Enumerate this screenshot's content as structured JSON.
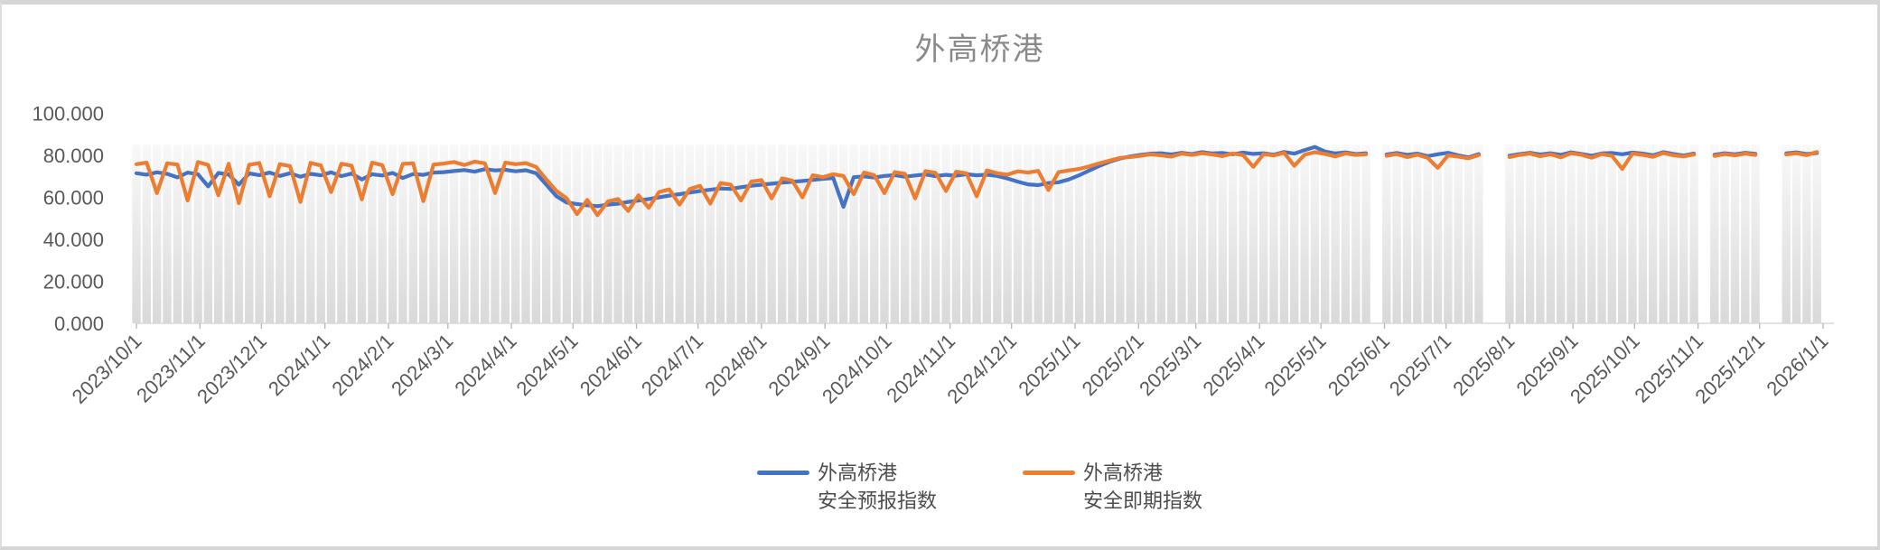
{
  "chart": {
    "title": "外高桥港"
  },
  "legend": {
    "items": [
      {
        "line1": "外高桥港",
        "line2": "安全预报指数",
        "color": "#4472C4"
      },
      {
        "line1": "外高桥港",
        "line2": "安全即期指数",
        "color": "#ED7D31"
      }
    ]
  },
  "colors": {
    "title_text": "#8a8a8a",
    "axis_line": "#d9d9d9",
    "tick_mark": "#b5b5b5",
    "axis_label_text": "#595959",
    "legend_text": "#4d4d4d",
    "series_forecast": "#4472C4",
    "series_spot": "#ED7D31",
    "bar_gradient_top": "#f8f8f8",
    "bar_gradient_bottom": "#d9d9d9"
  },
  "chart_data": {
    "type": "line",
    "title": "外高桥港",
    "xlabel": "",
    "ylabel": "",
    "ylim": [
      0,
      100
    ],
    "grid": false,
    "legend_position": "bottom",
    "x_start_date": "2023/10/1",
    "x_step_days": 5,
    "x_tick_labels": [
      "2023/10/1",
      "2023/11/1",
      "2023/12/1",
      "2024/1/1",
      "2024/2/1",
      "2024/3/1",
      "2024/4/1",
      "2024/5/1",
      "2024/6/1",
      "2024/7/1",
      "2024/8/1",
      "2024/9/1",
      "2024/10/1",
      "2024/11/1",
      "2024/12/1",
      "2025/1/1",
      "2025/2/1",
      "2025/3/1",
      "2025/4/1",
      "2025/5/1",
      "2025/6/1",
      "2025/7/1",
      "2025/8/1",
      "2025/9/1",
      "2025/10/1",
      "2025/11/1",
      "2025/12/1",
      "2026/1/1"
    ],
    "x_tick_day_offsets": [
      0,
      31,
      61,
      92,
      123,
      152,
      183,
      213,
      244,
      274,
      305,
      336,
      366,
      397,
      427,
      458,
      489,
      517,
      548,
      578,
      609,
      639,
      670,
      701,
      731,
      762,
      792,
      823
    ],
    "y_tick_labels": [
      "0.000",
      "20.000",
      "40.000",
      "60.000",
      "80.000",
      "100.000"
    ],
    "y_tick_values": [
      0,
      20,
      40,
      60,
      80,
      100
    ],
    "background_bars": {
      "top_value": 85,
      "color_top": "#f8f8f8",
      "color_bottom": "#d9d9d9"
    },
    "series": [
      {
        "name": "外高桥港安全预报指数",
        "color": "#4472C4",
        "values": [
          71.5,
          70.8,
          71.9,
          71.2,
          69.5,
          71.8,
          71.0,
          65.2,
          71.6,
          70.9,
          66.0,
          71.4,
          70.6,
          71.8,
          70.2,
          71.5,
          69.8,
          71.2,
          70.5,
          71.9,
          70.1,
          71.3,
          68.5,
          71.0,
          70.4,
          71.6,
          69.2,
          71.1,
          70.7,
          71.8,
          72.0,
          72.5,
          73.0,
          72.2,
          73.4,
          72.8,
          73.1,
          72.4,
          72.9,
          71.5,
          66.0,
          60.5,
          57.5,
          56.8,
          56.2,
          55.8,
          56.5,
          57.0,
          57.8,
          58.5,
          59.2,
          60.0,
          60.8,
          61.5,
          62.3,
          63.0,
          63.6,
          64.2,
          64.0,
          64.8,
          65.5,
          66.0,
          66.5,
          67.0,
          67.4,
          67.8,
          68.3,
          68.8,
          69.2,
          55.5,
          69.6,
          70.0,
          69.4,
          70.2,
          70.6,
          69.8,
          70.4,
          70.9,
          70.1,
          70.7,
          70.3,
          71.0,
          70.5,
          70.8,
          70.2,
          69.0,
          67.5,
          66.2,
          65.8,
          66.8,
          67.2,
          68.5,
          70.5,
          72.8,
          75.0,
          77.0,
          78.5,
          79.5,
          80.2,
          80.8,
          81.0,
          80.4,
          81.2,
          80.6,
          81.5,
          80.9,
          81.1,
          80.5,
          81.3,
          80.7,
          81.0,
          80.3,
          81.6,
          80.8,
          82.5,
          84.0,
          81.8,
          80.9,
          81.4,
          80.6,
          81.0,
          null,
          80.4,
          81.1,
          80.2,
          80.8,
          79.6,
          80.5,
          81.2,
          80.0,
          79.0,
          80.6,
          null,
          null,
          79.8,
          80.6,
          81.2,
          80.4,
          81.0,
          80.2,
          81.4,
          80.7,
          79.8,
          80.9,
          81.1,
          80.5,
          81.3,
          80.8,
          80.0,
          81.5,
          80.6,
          79.9,
          80.8,
          null,
          80.3,
          81.0,
          80.5,
          81.2,
          80.7,
          null,
          null,
          80.9,
          81.4,
          80.6,
          81.1
        ]
      },
      {
        "name": "外高桥港安全即期指数",
        "color": "#ED7D31",
        "values": [
          75.8,
          76.5,
          62.0,
          76.2,
          75.6,
          58.5,
          76.8,
          75.4,
          61.0,
          76.0,
          57.2,
          75.5,
          76.3,
          60.5,
          75.8,
          74.9,
          57.8,
          76.4,
          75.2,
          62.5,
          76.0,
          75.1,
          59.0,
          76.5,
          75.3,
          61.5,
          75.9,
          76.2,
          58.2,
          75.6,
          76.1,
          76.8,
          75.4,
          77.0,
          76.2,
          62.0,
          76.5,
          75.8,
          76.3,
          74.5,
          68.5,
          63.0,
          59.5,
          52.0,
          58.8,
          51.5,
          58.0,
          59.2,
          53.5,
          61.0,
          55.0,
          62.5,
          63.8,
          56.5,
          64.0,
          65.5,
          57.0,
          66.8,
          66.0,
          58.5,
          67.5,
          68.2,
          59.5,
          69.0,
          68.0,
          60.0,
          70.5,
          69.6,
          71.0,
          70.2,
          61.5,
          71.8,
          70.6,
          62.0,
          72.0,
          71.2,
          59.5,
          72.5,
          71.6,
          63.0,
          72.2,
          71.4,
          60.5,
          72.8,
          71.5,
          70.8,
          72.4,
          71.8,
          72.6,
          63.5,
          72.0,
          72.8,
          73.5,
          74.8,
          76.2,
          77.5,
          78.8,
          79.2,
          79.8,
          80.5,
          80.0,
          79.4,
          80.8,
          80.2,
          81.0,
          80.4,
          79.6,
          80.9,
          80.1,
          74.5,
          80.6,
          79.9,
          81.2,
          75.0,
          80.3,
          81.5,
          80.7,
          79.5,
          80.9,
          80.2,
          80.5,
          null,
          79.8,
          80.6,
          79.2,
          80.3,
          78.8,
          74.0,
          80.0,
          79.4,
          78.6,
          80.1,
          null,
          null,
          79.2,
          80.2,
          80.8,
          79.6,
          80.5,
          79.0,
          81.0,
          80.3,
          78.9,
          80.6,
          79.8,
          73.5,
          80.9,
          80.2,
          79.3,
          81.1,
          80.0,
          79.5,
          80.4,
          null,
          79.7,
          80.6,
          80.0,
          80.8,
          80.2,
          null,
          null,
          80.4,
          81.0,
          80.1,
          81.6
        ]
      }
    ]
  }
}
